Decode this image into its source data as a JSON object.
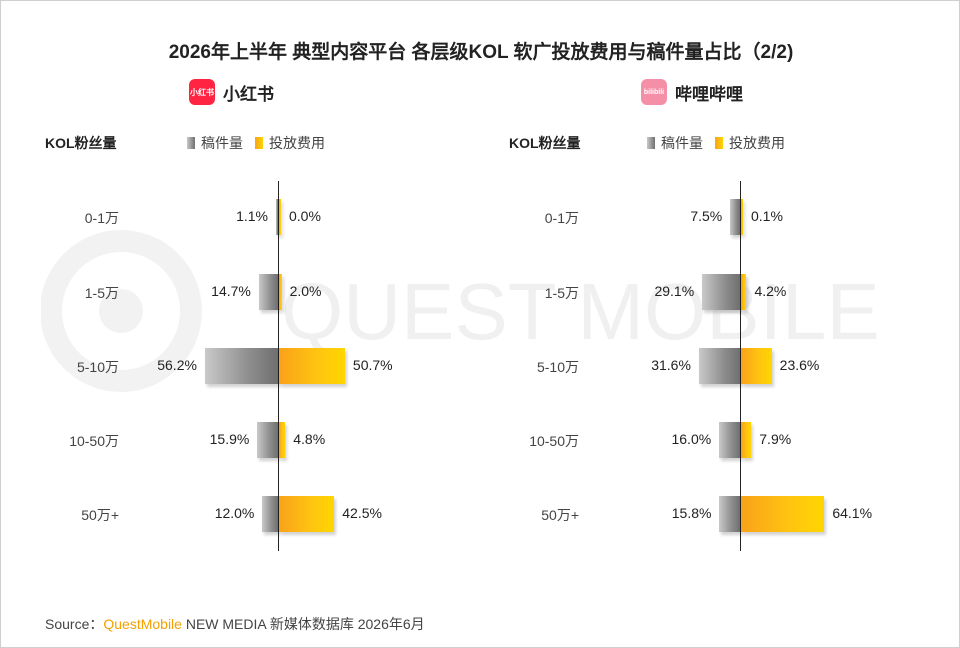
{
  "title": "2026年上半年 典型内容平台 各层级KOL 软广投放费用与稿件量占比（2/2)",
  "source": {
    "prefix": "Source：",
    "brand": "QuestMobile",
    "rest": " NEW MEDIA 新媒体数据库 2026年6月"
  },
  "watermark": "QUEST MOBILE",
  "colors": {
    "count": "#8e8e8e",
    "cost": "#ffc510",
    "xhs_logo": "#ff2442",
    "bili_logo": "#f58fa8"
  },
  "chart_data": [
    {
      "type": "bar",
      "platform": "小红书",
      "logo_text": "小红书",
      "row_header": "KOL粉丝量",
      "categories": [
        "0-1万",
        "1-5万",
        "5-10万",
        "10-50万",
        "50万+"
      ],
      "series": [
        {
          "name": "稿件量",
          "values": [
            1.1,
            14.7,
            56.2,
            15.9,
            12.0
          ],
          "labels": [
            "1.1%",
            "14.7%",
            "56.2%",
            "15.9%",
            "12.0%"
          ]
        },
        {
          "name": "投放费用",
          "values": [
            0.0,
            2.0,
            50.7,
            4.8,
            42.5
          ],
          "labels": [
            "0.0%",
            "2.0%",
            "50.7%",
            "4.8%",
            "42.5%"
          ]
        }
      ]
    },
    {
      "type": "bar",
      "platform": "哔哩哔哩",
      "logo_text": "bilibili",
      "row_header": "KOL粉丝量",
      "categories": [
        "0-1万",
        "1-5万",
        "5-10万",
        "10-50万",
        "50万+"
      ],
      "series": [
        {
          "name": "稿件量",
          "values": [
            7.5,
            29.1,
            31.6,
            16.0,
            15.8
          ],
          "labels": [
            "7.5%",
            "29.1%",
            "31.6%",
            "16.0%",
            "15.8%"
          ]
        },
        {
          "name": "投放费用",
          "values": [
            0.1,
            4.2,
            23.6,
            7.9,
            64.1
          ],
          "labels": [
            "0.1%",
            "4.2%",
            "23.6%",
            "7.9%",
            "64.1%"
          ]
        }
      ]
    }
  ]
}
